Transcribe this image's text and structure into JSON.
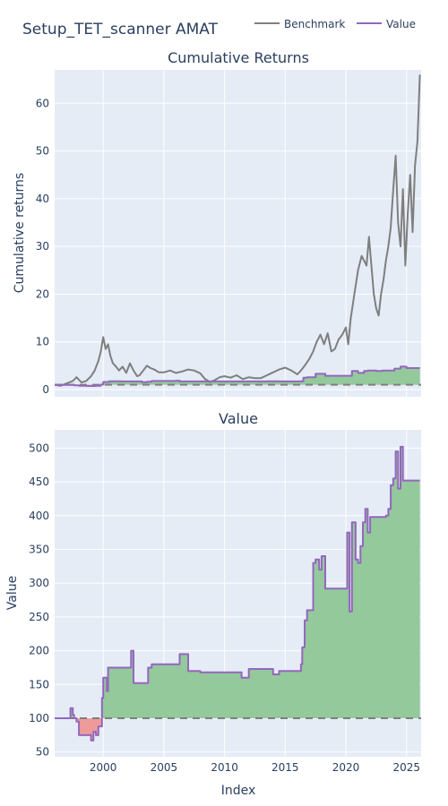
{
  "title": "Setup_TET_scanner AMAT",
  "legend": [
    {
      "name": "Benchmark",
      "color": "#7f7f7f"
    },
    {
      "name": "Value",
      "color": "#9467bd"
    }
  ],
  "colors": {
    "plot_bg": "#e5ecf6",
    "grid": "#ffffff",
    "benchmark": "#7f7f7f",
    "value": "#9467bd",
    "gain_fill": "#93c99b",
    "loss_fill": "#ef9a9a",
    "baseline": "#7f7f7f"
  },
  "chart_data": [
    {
      "type": "line",
      "title": "Cumulative Returns",
      "xlabel": "",
      "ylabel": "Cumulative returns",
      "xlim": [
        1996.0,
        2026.2
      ],
      "ylim": [
        -1.5,
        67
      ],
      "yticks": [
        0,
        10,
        20,
        30,
        40,
        50,
        60
      ],
      "baseline": 1,
      "grid": true,
      "legend_position": "top-right",
      "series": [
        {
          "name": "Benchmark",
          "x": [
            1996.0,
            1996.5,
            1997.0,
            1997.5,
            1997.8,
            1998.2,
            1998.6,
            1999.0,
            1999.3,
            1999.6,
            1999.8,
            2000.0,
            2000.2,
            2000.4,
            2000.6,
            2000.8,
            2001.0,
            2001.3,
            2001.6,
            2001.9,
            2002.2,
            2002.5,
            2002.8,
            2003.0,
            2003.3,
            2003.6,
            2003.9,
            2004.2,
            2004.6,
            2005.0,
            2005.5,
            2006.0,
            2006.5,
            2007.0,
            2007.5,
            2008.0,
            2008.4,
            2008.8,
            2009.2,
            2009.6,
            2010.0,
            2010.5,
            2011.0,
            2011.5,
            2012.0,
            2012.5,
            2013.0,
            2013.5,
            2014.0,
            2014.5,
            2015.0,
            2015.5,
            2016.0,
            2016.3,
            2016.6,
            2017.0,
            2017.3,
            2017.6,
            2017.9,
            2018.2,
            2018.5,
            2018.8,
            2019.1,
            2019.4,
            2019.7,
            2020.0,
            2020.2,
            2020.4,
            2020.7,
            2021.0,
            2021.3,
            2021.5,
            2021.7,
            2021.9,
            2022.1,
            2022.3,
            2022.5,
            2022.7,
            2022.9,
            2023.1,
            2023.3,
            2023.5,
            2023.7,
            2023.9,
            2024.1,
            2024.3,
            2024.5,
            2024.7,
            2024.9,
            2025.1,
            2025.3,
            2025.5,
            2025.7,
            2025.9,
            2026.1
          ],
          "y": [
            1.0,
            0.8,
            1.3,
            1.8,
            2.6,
            1.5,
            1.8,
            2.8,
            4.0,
            6.0,
            8.0,
            11.0,
            8.5,
            9.5,
            7.0,
            5.5,
            5.0,
            4.0,
            4.8,
            3.5,
            5.5,
            4.0,
            2.8,
            3.0,
            4.0,
            5.0,
            4.5,
            4.2,
            3.6,
            3.6,
            4.0,
            3.5,
            3.8,
            4.2,
            4.0,
            3.4,
            2.2,
            1.6,
            2.0,
            2.6,
            2.8,
            2.5,
            3.0,
            2.2,
            2.6,
            2.4,
            2.4,
            3.0,
            3.6,
            4.2,
            4.6,
            4.0,
            3.2,
            4.0,
            5.0,
            6.5,
            8.0,
            10.0,
            11.5,
            9.5,
            11.8,
            8.0,
            8.5,
            10.5,
            11.5,
            13.0,
            9.5,
            15.0,
            20.0,
            25.0,
            28.0,
            27.0,
            26.0,
            32.0,
            26.0,
            20.0,
            17.0,
            15.5,
            20.0,
            23.0,
            27.0,
            30.0,
            34.0,
            42.0,
            49.0,
            35.0,
            30.0,
            42.0,
            26.0,
            37.0,
            45.0,
            33.0,
            47.0,
            52.0,
            66.0
          ]
        },
        {
          "name": "Value",
          "x": [
            1996.0,
            1997.4,
            1997.6,
            1998.0,
            1998.6,
            1999.0,
            1999.4,
            1999.8,
            2000.0,
            2000.5,
            2001.5,
            2002.3,
            2003.2,
            2003.6,
            2004.0,
            2005.0,
            2006.0,
            2006.3,
            2008.0,
            2010.0,
            2012.0,
            2013.5,
            2014.5,
            2015.5,
            2016.2,
            2016.5,
            2016.8,
            2017.5,
            2018.0,
            2018.3,
            2019.0,
            2020.0,
            2020.5,
            2021.0,
            2021.5,
            2021.8,
            2022.5,
            2023.0,
            2023.5,
            2024.0,
            2024.5,
            2025.0,
            2025.5,
            2026.1
          ],
          "y": [
            1.0,
            1.0,
            0.9,
            0.8,
            0.75,
            0.75,
            0.8,
            1.05,
            1.6,
            1.75,
            1.7,
            1.7,
            1.55,
            1.65,
            1.8,
            1.8,
            1.85,
            1.7,
            1.7,
            1.7,
            1.7,
            1.75,
            1.7,
            1.7,
            1.75,
            2.5,
            2.6,
            3.3,
            3.3,
            2.9,
            2.9,
            2.9,
            3.9,
            3.5,
            3.9,
            4.0,
            3.9,
            4.0,
            4.0,
            4.4,
            4.8,
            4.5,
            4.5,
            4.5
          ]
        }
      ]
    },
    {
      "type": "line",
      "title": "Value",
      "xlabel": "Index",
      "ylabel": "Value",
      "xlim": [
        1996.0,
        2026.2
      ],
      "ylim": [
        43,
        527
      ],
      "yticks": [
        50,
        100,
        150,
        200,
        250,
        300,
        350,
        400,
        450,
        500
      ],
      "xticks": [
        2000,
        2005,
        2010,
        2015,
        2020,
        2025
      ],
      "baseline": 100,
      "grid": true,
      "series": [
        {
          "name": "Value",
          "x": [
            1996.0,
            1997.2,
            1997.3,
            1997.5,
            1997.6,
            1997.8,
            1998.0,
            1998.5,
            1998.9,
            1999.0,
            1999.2,
            1999.4,
            1999.6,
            1999.9,
            2000.0,
            2000.3,
            2000.4,
            2000.6,
            2001.0,
            2002.0,
            2002.3,
            2002.5,
            2002.6,
            2003.0,
            2003.5,
            2003.7,
            2004.0,
            2005.0,
            2006.0,
            2006.3,
            2007.0,
            2008.0,
            2009.0,
            2010.0,
            2011.0,
            2011.4,
            2012.0,
            2013.0,
            2013.5,
            2014.0,
            2014.5,
            2015.0,
            2016.0,
            2016.3,
            2016.4,
            2016.6,
            2016.8,
            2017.0,
            2017.3,
            2017.5,
            2017.8,
            2018.0,
            2018.3,
            2018.5,
            2019.0,
            2019.5,
            2020.0,
            2020.1,
            2020.3,
            2020.5,
            2020.8,
            2021.0,
            2021.2,
            2021.4,
            2021.6,
            2021.8,
            2022.0,
            2022.3,
            2022.6,
            2023.0,
            2023.3,
            2023.5,
            2023.7,
            2023.9,
            2024.1,
            2024.3,
            2024.5,
            2024.7,
            2025.0,
            2026.1
          ],
          "y": [
            100,
            100,
            115,
            105,
            100,
            95,
            75,
            75,
            75,
            67,
            80,
            75,
            88,
            130,
            160,
            140,
            175,
            175,
            175,
            175,
            200,
            152,
            152,
            152,
            152,
            175,
            180,
            180,
            180,
            195,
            170,
            168,
            168,
            168,
            168,
            160,
            173,
            173,
            173,
            165,
            170,
            170,
            170,
            180,
            205,
            245,
            260,
            260,
            330,
            335,
            320,
            340,
            292,
            292,
            292,
            292,
            292,
            375,
            258,
            390,
            335,
            330,
            355,
            390,
            410,
            375,
            398,
            398,
            398,
            398,
            400,
            410,
            445,
            455,
            495,
            440,
            502,
            452,
            452,
            452
          ]
        }
      ]
    }
  ]
}
